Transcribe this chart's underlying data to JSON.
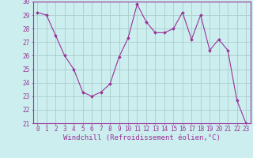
{
  "x": [
    0,
    1,
    2,
    3,
    4,
    5,
    6,
    7,
    8,
    9,
    10,
    11,
    12,
    13,
    14,
    15,
    16,
    17,
    18,
    19,
    20,
    21,
    22,
    23
  ],
  "y": [
    29.2,
    29.0,
    27.5,
    26.0,
    25.0,
    23.3,
    23.0,
    23.3,
    23.9,
    25.9,
    27.3,
    29.8,
    28.5,
    27.7,
    27.7,
    28.0,
    29.2,
    27.2,
    29.0,
    26.4,
    27.2,
    26.4,
    22.7,
    21.0
  ],
  "line_color": "#993399",
  "marker_color": "#993399",
  "bg_color": "#cceeee",
  "grid_color": "#aacccc",
  "xlabel": "Windchill (Refroidissement éolien,°C)",
  "ylim": [
    21,
    30
  ],
  "xlim": [
    -0.5,
    23.5
  ],
  "yticks": [
    21,
    22,
    23,
    24,
    25,
    26,
    27,
    28,
    29,
    30
  ],
  "xticks": [
    0,
    1,
    2,
    3,
    4,
    5,
    6,
    7,
    8,
    9,
    10,
    11,
    12,
    13,
    14,
    15,
    16,
    17,
    18,
    19,
    20,
    21,
    22,
    23
  ],
  "axis_color": "#993399",
  "tick_fontsize": 5.5,
  "label_fontsize": 6.5
}
